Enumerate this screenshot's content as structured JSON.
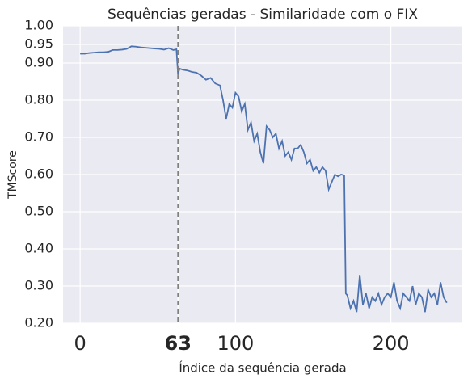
{
  "chart_data": {
    "type": "line",
    "title": "Sequências geradas - Similaridade com o FIX",
    "xlabel": "Índice da sequência gerada",
    "ylabel": "TMScore",
    "x": [
      0,
      3,
      6,
      9,
      12,
      15,
      18,
      21,
      24,
      27,
      30,
      33,
      36,
      39,
      42,
      45,
      48,
      51,
      54,
      57,
      60,
      62,
      63,
      64,
      66,
      69,
      72,
      75,
      78,
      81,
      84,
      87,
      90,
      92,
      94,
      96,
      98,
      100,
      102,
      104,
      106,
      108,
      110,
      112,
      114,
      116,
      118,
      120,
      122,
      124,
      126,
      128,
      130,
      132,
      134,
      136,
      138,
      140,
      142,
      144,
      146,
      148,
      150,
      152,
      154,
      156,
      158,
      160,
      162,
      164,
      166,
      168,
      170,
      171,
      172,
      174,
      176,
      178,
      180,
      182,
      184,
      186,
      188,
      190,
      192,
      194,
      196,
      198,
      200,
      202,
      204,
      206,
      208,
      210,
      212,
      214,
      216,
      218,
      220,
      222,
      224,
      226,
      228,
      230,
      232,
      234,
      236
    ],
    "series": [
      {
        "name": "TMScore",
        "color": "#4c72b0",
        "values": [
          0.925,
          0.925,
          0.927,
          0.928,
          0.929,
          0.929,
          0.93,
          0.935,
          0.935,
          0.936,
          0.938,
          0.945,
          0.944,
          0.942,
          0.941,
          0.94,
          0.939,
          0.938,
          0.936,
          0.94,
          0.935,
          0.937,
          0.87,
          0.885,
          0.882,
          0.88,
          0.876,
          0.874,
          0.866,
          0.855,
          0.86,
          0.845,
          0.84,
          0.8,
          0.75,
          0.79,
          0.78,
          0.82,
          0.81,
          0.77,
          0.79,
          0.72,
          0.74,
          0.69,
          0.71,
          0.66,
          0.63,
          0.73,
          0.72,
          0.7,
          0.71,
          0.67,
          0.69,
          0.65,
          0.66,
          0.64,
          0.67,
          0.67,
          0.68,
          0.66,
          0.63,
          0.64,
          0.61,
          0.62,
          0.605,
          0.62,
          0.61,
          0.56,
          0.58,
          0.6,
          0.595,
          0.6,
          0.598,
          0.28,
          0.275,
          0.24,
          0.26,
          0.23,
          0.33,
          0.25,
          0.28,
          0.24,
          0.27,
          0.26,
          0.28,
          0.25,
          0.27,
          0.28,
          0.27,
          0.31,
          0.26,
          0.24,
          0.28,
          0.27,
          0.26,
          0.3,
          0.25,
          0.28,
          0.27,
          0.23,
          0.29,
          0.27,
          0.28,
          0.25,
          0.31,
          0.27,
          0.255
        ]
      }
    ],
    "xlim": [
      -11,
      246
    ],
    "ylim": [
      0.2,
      1.0
    ],
    "xticks": [
      0,
      63,
      100,
      200
    ],
    "yticks": [
      {
        "value": 0.2,
        "label": "0.20"
      },
      {
        "value": 0.3,
        "label": "0.30"
      },
      {
        "value": 0.4,
        "label": "0.40"
      },
      {
        "value": 0.5,
        "label": "0.50"
      },
      {
        "value": 0.6,
        "label": "0.60"
      },
      {
        "value": 0.7,
        "label": "0.70"
      },
      {
        "value": 0.8,
        "label": "0.80"
      },
      {
        "value": 0.9,
        "label": "0.90"
      },
      {
        "value": 0.95,
        "label": "0.95"
      },
      {
        "value": 1.0,
        "label": "1.00"
      }
    ],
    "vline": 63,
    "vline_color": "#808080",
    "grid": true
  }
}
